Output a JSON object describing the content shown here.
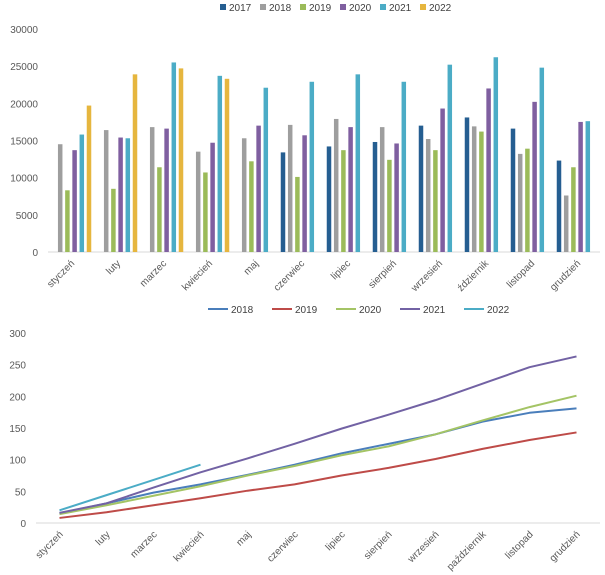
{
  "chart_data": [
    {
      "type": "bar",
      "title": "",
      "xlabel": "",
      "ylabel": "",
      "ylim": [
        0,
        30000
      ],
      "yticks": [
        "0",
        "5000",
        "10000",
        "15000",
        "20000",
        "25000",
        "30000"
      ],
      "grid": false,
      "legend": "top-center",
      "categories": [
        "styczeń",
        "luty",
        "marzec",
        "kwiecień",
        "maj",
        "czerwiec",
        "lipiec",
        "sierpień",
        "wrzesień",
        "październik",
        "listopad",
        "grudzień"
      ],
      "category_labels": [
        "styczeń",
        "luty",
        "marzec",
        "kwiecień",
        "maj",
        "czerwiec",
        "lipiec",
        "sierpień",
        "wrzesień",
        "ździernik",
        "listopad",
        "grudzień"
      ],
      "series": [
        {
          "name": "2017",
          "color": "#255e91",
          "values": [
            null,
            null,
            null,
            null,
            null,
            13400,
            14200,
            14800,
            17000,
            18100,
            16600,
            12300
          ]
        },
        {
          "name": "2018",
          "color": "#9e9e9e",
          "values": [
            14500,
            16400,
            16800,
            13500,
            15300,
            17100,
            17900,
            16800,
            15200,
            16900,
            13200,
            7600
          ]
        },
        {
          "name": "2019",
          "color": "#9bbb59",
          "values": [
            8300,
            8500,
            11400,
            10700,
            12200,
            10100,
            13700,
            12400,
            13700,
            16200,
            13900,
            11400
          ]
        },
        {
          "name": "2020",
          "color": "#7f5fa0",
          "values": [
            13700,
            15400,
            16600,
            14700,
            17000,
            15700,
            16800,
            14600,
            19300,
            22000,
            20200,
            17500
          ]
        },
        {
          "name": "2021",
          "color": "#4bacc6",
          "values": [
            15800,
            15300,
            25500,
            23700,
            22100,
            22900,
            23900,
            22900,
            25200,
            26200,
            24800,
            17600
          ]
        },
        {
          "name": "2022",
          "color": "#e6b63e",
          "values": [
            19700,
            23900,
            24700,
            23300,
            null,
            null,
            null,
            null,
            null,
            null,
            null,
            null
          ]
        }
      ]
    },
    {
      "type": "line",
      "title": "",
      "xlabel": "",
      "ylabel": "",
      "ylim": [
        0,
        300
      ],
      "yticks": [
        "0",
        "50",
        "100",
        "150",
        "200",
        "250",
        "300"
      ],
      "grid": false,
      "legend": "top-center",
      "categories": [
        "styczeń",
        "luty",
        "marzec",
        "kwiecień",
        "maj",
        "czerwiec",
        "lipiec",
        "sierpień",
        "wrzesień",
        "październik",
        "listopad",
        "grudzień"
      ],
      "series": [
        {
          "name": "2018",
          "color": "#4a7ebb",
          "values": [
            15,
            31,
            48,
            61,
            76,
            92,
            110,
            125,
            140,
            160,
            174,
            181
          ]
        },
        {
          "name": "2019",
          "color": "#be4b48",
          "values": [
            8,
            17,
            28,
            39,
            51,
            61,
            75,
            87,
            101,
            117,
            131,
            143
          ]
        },
        {
          "name": "2020",
          "color": "#a4c465",
          "values": [
            14,
            28,
            43,
            58,
            75,
            90,
            107,
            121,
            140,
            162,
            183,
            201
          ]
        },
        {
          "name": "2021",
          "color": "#7262a4",
          "values": [
            16,
            31,
            56,
            80,
            102,
            125,
            149,
            171,
            194,
            220,
            246,
            263
          ]
        },
        {
          "name": "2022",
          "color": "#4bacc6",
          "values": [
            20,
            44,
            68,
            92,
            null,
            null,
            null,
            null,
            null,
            null,
            null,
            null
          ]
        }
      ]
    }
  ]
}
